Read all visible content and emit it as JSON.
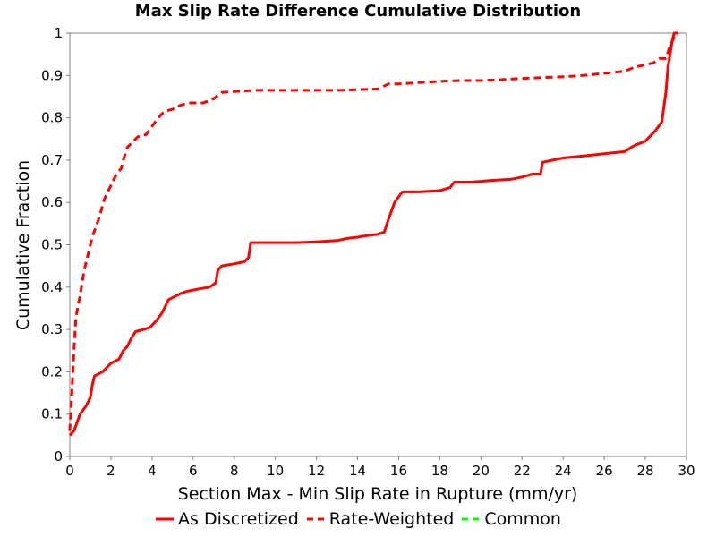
{
  "chart_data": {
    "type": "line",
    "title": "Max Slip Rate Difference Cumulative Distribution",
    "xlabel": "Section Max - Min Slip Rate in Rupture (mm/yr)",
    "ylabel": "Cumulative Fraction",
    "xlim": [
      0,
      30
    ],
    "ylim": [
      0,
      1
    ],
    "xticks": [
      "0",
      "2",
      "4",
      "6",
      "8",
      "10",
      "12",
      "14",
      "16",
      "18",
      "20",
      "22",
      "24",
      "26",
      "28",
      "30"
    ],
    "yticks": [
      "0",
      "0.1",
      "0.2",
      "0.3",
      "0.4",
      "0.5",
      "0.6",
      "0.7",
      "0.8",
      "0.9",
      "1"
    ],
    "grid": false,
    "legend_position": "bottom",
    "series": [
      {
        "name": "As Discretized",
        "color": "#ff0000",
        "style": "solid",
        "x": [
          0,
          0.2,
          0.35,
          0.5,
          0.8,
          1.0,
          1.1,
          1.2,
          1.6,
          2.0,
          2.4,
          2.6,
          2.8,
          3.0,
          3.2,
          3.6,
          3.9,
          4.2,
          4.5,
          4.8,
          5.0,
          5.4,
          5.7,
          6.2,
          6.8,
          7.1,
          7.2,
          7.4,
          8.0,
          8.5,
          8.7,
          8.8,
          9.2,
          11.0,
          12.0,
          13.0,
          13.5,
          14.0,
          14.5,
          15.0,
          15.3,
          15.5,
          15.8,
          16.1,
          16.2,
          17.0,
          18.0,
          18.5,
          18.7,
          19.5,
          20.0,
          20.5,
          21.5,
          22.0,
          22.5,
          22.9,
          23.0,
          23.5,
          24.0,
          25.0,
          26.0,
          27.0,
          27.3,
          27.5,
          28.0,
          28.5,
          28.8,
          29.0,
          29.1,
          29.2,
          29.3,
          29.4,
          29.5,
          29.6
        ],
        "y": [
          0.05,
          0.06,
          0.08,
          0.1,
          0.12,
          0.14,
          0.17,
          0.19,
          0.2,
          0.22,
          0.23,
          0.25,
          0.26,
          0.28,
          0.295,
          0.3,
          0.305,
          0.32,
          0.34,
          0.37,
          0.375,
          0.385,
          0.39,
          0.395,
          0.4,
          0.41,
          0.44,
          0.45,
          0.455,
          0.46,
          0.47,
          0.505,
          0.505,
          0.505,
          0.507,
          0.51,
          0.515,
          0.518,
          0.522,
          0.525,
          0.53,
          0.56,
          0.6,
          0.62,
          0.625,
          0.625,
          0.628,
          0.635,
          0.648,
          0.648,
          0.65,
          0.652,
          0.655,
          0.66,
          0.667,
          0.667,
          0.695,
          0.7,
          0.705,
          0.71,
          0.715,
          0.72,
          0.73,
          0.735,
          0.745,
          0.77,
          0.79,
          0.86,
          0.92,
          0.95,
          0.98,
          1.0,
          1.0,
          1.0
        ]
      },
      {
        "name": "Rate-Weighted",
        "color": "#ff0000",
        "style": "dashed",
        "x": [
          0,
          0.1,
          0.2,
          0.3,
          0.5,
          0.7,
          0.9,
          1.1,
          1.4,
          1.7,
          2.0,
          2.3,
          2.5,
          2.6,
          2.8,
          3.0,
          3.3,
          3.7,
          4.0,
          4.3,
          4.6,
          5.0,
          5.4,
          5.8,
          6.5,
          7.0,
          7.4,
          8.0,
          9.0,
          11.0,
          13.0,
          15.0,
          15.5,
          16.0,
          17.0,
          18.0,
          19.0,
          20.0,
          21.0,
          22.0,
          23.0,
          24.0,
          25.0,
          26.0,
          27.0,
          27.5,
          28.0,
          28.4,
          28.7,
          29.0,
          29.2,
          29.5
        ],
        "y": [
          0.06,
          0.15,
          0.25,
          0.33,
          0.38,
          0.44,
          0.48,
          0.52,
          0.56,
          0.61,
          0.64,
          0.67,
          0.68,
          0.7,
          0.73,
          0.74,
          0.755,
          0.76,
          0.78,
          0.8,
          0.815,
          0.82,
          0.83,
          0.835,
          0.835,
          0.845,
          0.86,
          0.862,
          0.865,
          0.865,
          0.865,
          0.868,
          0.88,
          0.88,
          0.883,
          0.886,
          0.888,
          0.888,
          0.89,
          0.893,
          0.895,
          0.897,
          0.9,
          0.905,
          0.91,
          0.92,
          0.925,
          0.93,
          0.94,
          0.94,
          0.97,
          1.0
        ]
      },
      {
        "name": "Common",
        "color": "#00ff00",
        "style": "dashed",
        "x": [],
        "y": []
      }
    ]
  }
}
